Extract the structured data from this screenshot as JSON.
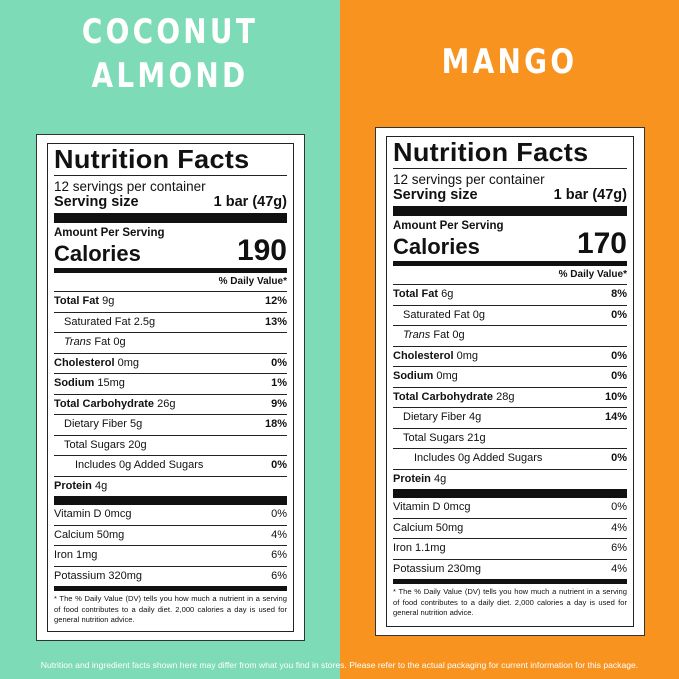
{
  "left": {
    "flavor_line1": "COCONUT",
    "flavor_line2": "ALMOND",
    "panel": {
      "title": "Nutrition Facts",
      "servings": "12 servings per container",
      "serving_size_label": "Serving size",
      "serving_size_value": "1 bar (47g)",
      "amount_per_serving": "Amount Per Serving",
      "calories_label": "Calories",
      "calories_value": "190",
      "dv_header": "% Daily Value*",
      "rows": [
        {
          "name": "Total Fat",
          "amount": "9g",
          "pct": "12%"
        },
        {
          "name": "Saturated Fat",
          "amount": "2.5g",
          "pct": "13%"
        },
        {
          "name": "Trans",
          "amount": "Fat 0g",
          "pct": ""
        },
        {
          "name": "Cholesterol",
          "amount": "0mg",
          "pct": "0%"
        },
        {
          "name": "Sodium",
          "amount": "15mg",
          "pct": "1%"
        },
        {
          "name": "Total Carbohydrate",
          "amount": "26g",
          "pct": "9%"
        },
        {
          "name": "Dietary Fiber",
          "amount": "5g",
          "pct": "18%"
        },
        {
          "name": "Total Sugars",
          "amount": "20g",
          "pct": ""
        },
        {
          "name": "Includes 0g Added Sugars",
          "amount": "",
          "pct": "0%"
        },
        {
          "name": "Protein",
          "amount": "4g",
          "pct": ""
        }
      ],
      "vitamins": [
        {
          "name": "Vitamin D 0mcg",
          "pct": "0%"
        },
        {
          "name": "Calcium 50mg",
          "pct": "4%"
        },
        {
          "name": "Iron 1mg",
          "pct": "6%"
        },
        {
          "name": "Potassium 320mg",
          "pct": "6%"
        }
      ],
      "footnote": "* The % Daily Value (DV) tells you how much a nutrient in a serving of food contributes to a daily diet. 2,000 calories a day is used for general nutrition advice."
    }
  },
  "right": {
    "flavor": "MANGO",
    "panel": {
      "title": "Nutrition Facts",
      "servings": "12 servings per container",
      "serving_size_label": "Serving size",
      "serving_size_value": "1 bar (47g)",
      "amount_per_serving": "Amount Per Serving",
      "calories_label": "Calories",
      "calories_value": "170",
      "dv_header": "% Daily Value*",
      "rows": [
        {
          "name": "Total Fat",
          "amount": "6g",
          "pct": "8%"
        },
        {
          "name": "Saturated Fat",
          "amount": "0g",
          "pct": "0%"
        },
        {
          "name": "Trans",
          "amount": "Fat 0g",
          "pct": ""
        },
        {
          "name": "Cholesterol",
          "amount": "0mg",
          "pct": "0%"
        },
        {
          "name": "Sodium",
          "amount": "0mg",
          "pct": "0%"
        },
        {
          "name": "Total Carbohydrate",
          "amount": "28g",
          "pct": "10%"
        },
        {
          "name": "Dietary Fiber",
          "amount": "4g",
          "pct": "14%"
        },
        {
          "name": "Total Sugars",
          "amount": "21g",
          "pct": ""
        },
        {
          "name": "Includes 0g Added Sugars",
          "amount": "",
          "pct": "0%"
        },
        {
          "name": "Protein",
          "amount": "4g",
          "pct": ""
        }
      ],
      "vitamins": [
        {
          "name": "Vitamin D 0mcg",
          "pct": "0%"
        },
        {
          "name": "Calcium 50mg",
          "pct": "4%"
        },
        {
          "name": "Iron 1.1mg",
          "pct": "6%"
        },
        {
          "name": "Potassium 230mg",
          "pct": "4%"
        }
      ],
      "footnote": "* The % Daily Value (DV) tells you how much a nutrient in a serving of food contributes to a daily diet. 2,000 calories a day is used for general nutrition advice."
    }
  },
  "disclaimer": "Nutrition and ingredient facts shown here may differ from what you find in stores. Please refer to the actual packaging for current information for this package.",
  "colors": {
    "left_bg": "#7ddbb7",
    "right_bg": "#f7931e"
  }
}
